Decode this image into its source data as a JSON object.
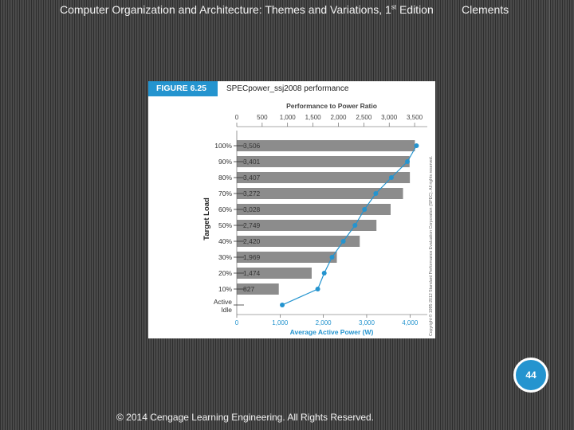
{
  "header": {
    "title_main": "Computer Organization and Architecture: Themes and Variations, 1",
    "title_sup": "st",
    "title_end": " Edition",
    "author": "Clements"
  },
  "figure": {
    "label": "FIGURE 6.25",
    "title": "SPECpower_ssj2008 performance",
    "credit": "Copyright © 1995-2012 Standard Performance Evaluation Corporation (SPEC). All rights reserved."
  },
  "page_number": "44",
  "footer": "© 2014 Cengage Learning Engineering. All Rights Reserved.",
  "colors": {
    "bar": "#8c8c8c",
    "line": "#2494cf",
    "accent": "#2494cf"
  },
  "chart_data": {
    "type": "bar",
    "categories": [
      "100%",
      "90%",
      "80%",
      "70%",
      "60%",
      "50%",
      "40%",
      "30%",
      "20%",
      "10%",
      "Active\nIdle"
    ],
    "y_axis_label": "Target Load",
    "top_axis_label": "Performance to Power Ratio",
    "top_axis_ticks": [
      "0",
      "500",
      "1,000",
      "1,500",
      "2,000",
      "2,500",
      "3,000",
      "3,500"
    ],
    "top_axis_range": [
      0,
      3750
    ],
    "bottom_axis_label": "Average Active Power (W)",
    "bottom_axis_ticks": [
      "0",
      "1,000",
      "2,000",
      "3,000",
      "4,000"
    ],
    "bottom_axis_range": [
      0,
      4400
    ],
    "series": [
      {
        "name": "Performance to Power Ratio",
        "type": "bar",
        "values": [
          3506,
          3401,
          3407,
          3272,
          3028,
          2749,
          2420,
          1969,
          1474,
          827,
          null
        ],
        "labels": [
          "3,506",
          "3,401",
          "3,407",
          "3,272",
          "3,028",
          "2,749",
          "2,420",
          "1,969",
          "1,474",
          "827",
          ""
        ]
      },
      {
        "name": "Average Active Power (W)",
        "type": "line",
        "values": [
          4150,
          3940,
          3570,
          3210,
          2950,
          2730,
          2460,
          2200,
          2020,
          1870,
          1050
        ]
      }
    ],
    "grid": false,
    "legend": "none"
  }
}
